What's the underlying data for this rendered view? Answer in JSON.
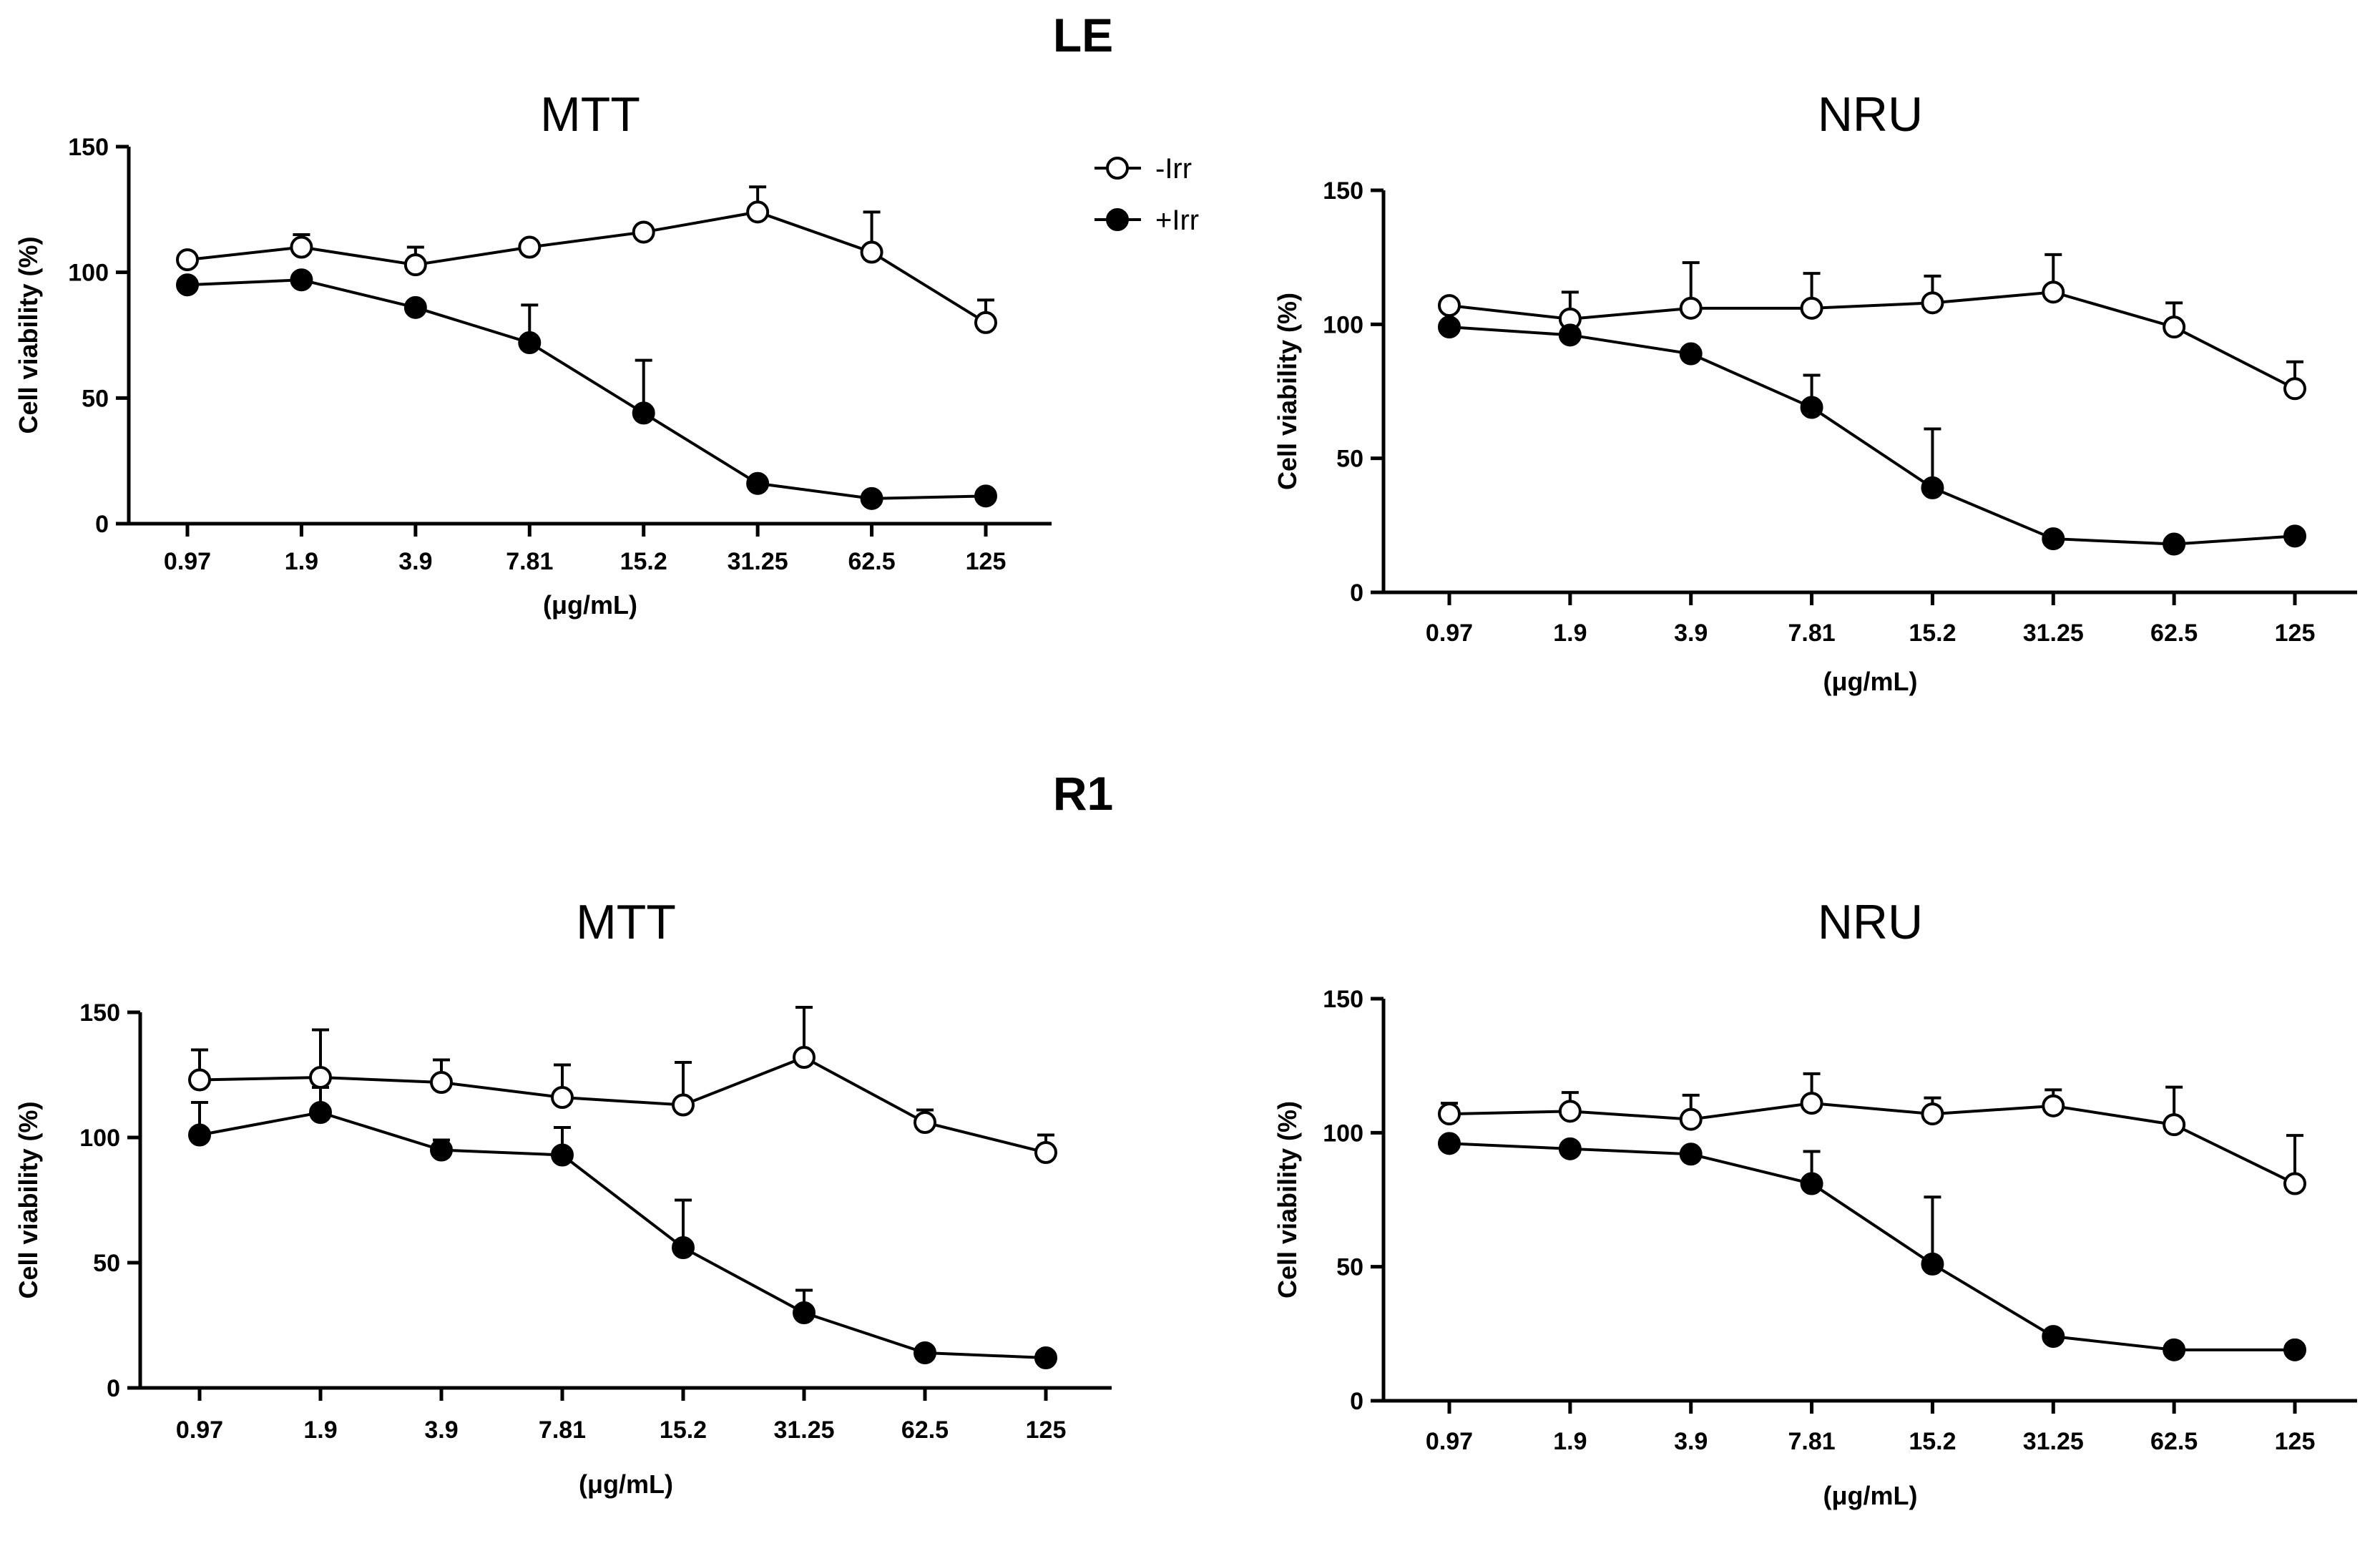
{
  "figure": {
    "sections": [
      "LE",
      "R1"
    ]
  },
  "legend": {
    "entries": [
      {
        "label": "-Irr",
        "marker": "open-circle"
      },
      {
        "label": "+Irr",
        "marker": "filled-circle"
      }
    ]
  },
  "chart_data": [
    {
      "type": "line",
      "section": "LE",
      "title": "MTT",
      "xlabel": "(μg/mL)",
      "ylabel": "Cell viability (%)",
      "ylim": [
        0,
        150
      ],
      "yticks": [
        0,
        50,
        100,
        150
      ],
      "categories": [
        "0.97",
        "1.9",
        "3.9",
        "7.81",
        "15.2",
        "31.25",
        "62.5",
        "125"
      ],
      "series": [
        {
          "name": "-Irr",
          "marker": "open",
          "values": [
            105,
            110,
            103,
            110,
            116,
            124,
            108,
            80
          ],
          "errors": [
            0,
            5,
            7,
            0,
            0,
            10,
            16,
            9
          ]
        },
        {
          "name": "+Irr",
          "marker": "filled",
          "values": [
            95,
            97,
            86,
            72,
            44,
            16,
            10,
            11
          ],
          "errors": [
            0,
            0,
            0,
            15,
            21,
            0,
            0,
            0
          ]
        }
      ]
    },
    {
      "type": "line",
      "section": "LE",
      "title": "NRU",
      "xlabel": "(μg/mL)",
      "ylabel": "Cell viability (%)",
      "ylim": [
        0,
        150
      ],
      "yticks": [
        0,
        50,
        100,
        150
      ],
      "categories": [
        "0.97",
        "1.9",
        "3.9",
        "7.81",
        "15.2",
        "31.25",
        "62.5",
        "125"
      ],
      "series": [
        {
          "name": "-Irr",
          "marker": "open",
          "values": [
            107,
            102,
            106,
            106,
            108,
            112,
            99,
            76
          ],
          "errors": [
            0,
            10,
            17,
            13,
            10,
            14,
            9,
            10
          ]
        },
        {
          "name": "+Irr",
          "marker": "filled",
          "values": [
            99,
            96,
            89,
            69,
            39,
            20,
            18,
            21
          ],
          "errors": [
            0,
            0,
            0,
            12,
            22,
            0,
            0,
            0
          ]
        }
      ]
    },
    {
      "type": "line",
      "section": "R1",
      "title": "MTT",
      "xlabel": "(μg/mL)",
      "ylabel": "Cell viability (%)",
      "ylim": [
        0,
        150
      ],
      "yticks": [
        0,
        50,
        100,
        150
      ],
      "categories": [
        "0.97",
        "1.9",
        "3.9",
        "7.81",
        "15.2",
        "31.25",
        "62.5",
        "125"
      ],
      "series": [
        {
          "name": "-Irr",
          "marker": "open",
          "values": [
            123,
            124,
            122,
            116,
            113,
            132,
            106,
            94
          ],
          "errors": [
            12,
            19,
            9,
            13,
            17,
            20,
            5,
            7
          ]
        },
        {
          "name": "+Irr",
          "marker": "filled",
          "values": [
            101,
            110,
            95,
            93,
            56,
            30,
            14,
            12
          ],
          "errors": [
            13,
            10,
            4,
            11,
            19,
            9,
            0,
            0
          ]
        }
      ]
    },
    {
      "type": "line",
      "section": "R1",
      "title": "NRU",
      "xlabel": "(μg/mL)",
      "ylabel": "Cell viability (%)",
      "ylim": [
        0,
        150
      ],
      "yticks": [
        0,
        50,
        100,
        150
      ],
      "categories": [
        "0.97",
        "1.9",
        "3.9",
        "7.81",
        "15.2",
        "31.25",
        "62.5",
        "125"
      ],
      "series": [
        {
          "name": "-Irr",
          "marker": "open",
          "values": [
            107,
            108,
            105,
            111,
            107,
            110,
            103,
            81
          ],
          "errors": [
            4,
            7,
            9,
            11,
            6,
            6,
            14,
            18
          ]
        },
        {
          "name": "+Irr",
          "marker": "filled",
          "values": [
            96,
            94,
            92,
            81,
            51,
            24,
            19,
            19
          ],
          "errors": [
            0,
            0,
            0,
            12,
            25,
            0,
            0,
            0
          ]
        }
      ]
    }
  ]
}
